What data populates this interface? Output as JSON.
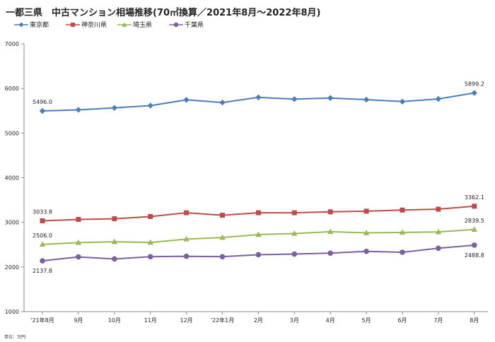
{
  "chart_data": {
    "type": "line",
    "title": "一都三県　中古マンション相場推移(70㎡換算／2021年8月～2022年8月)",
    "unit_note": "単位：万円",
    "categories": [
      "'21年8月",
      "9月",
      "10月",
      "11月",
      "12月",
      "'22年1月",
      "2月",
      "3月",
      "4月",
      "5月",
      "6月",
      "7月",
      "8月"
    ],
    "ylim": [
      1000,
      7000
    ],
    "yticks": [
      1000,
      2000,
      3000,
      4000,
      5000,
      6000,
      7000
    ],
    "grid": false,
    "legend_position": "top-left",
    "series": [
      {
        "name": "東京都",
        "color": "#4a7ebb",
        "marker": "diamond",
        "values": [
          5496.0,
          5520,
          5565,
          5615,
          5745,
          5685,
          5800,
          5760,
          5785,
          5750,
          5705,
          5765,
          5899.2
        ],
        "labels": [
          {
            "index": 0,
            "text": "5496.0",
            "pos": "above"
          },
          {
            "index": 12,
            "text": "5899.2",
            "pos": "above"
          }
        ]
      },
      {
        "name": "神奈川県",
        "color": "#be4b48",
        "marker": "square",
        "values": [
          3033.8,
          3065,
          3080,
          3130,
          3215,
          3160,
          3215,
          3215,
          3235,
          3250,
          3275,
          3295,
          3362.1
        ],
        "labels": [
          {
            "index": 0,
            "text": "3033.8",
            "pos": "above"
          },
          {
            "index": 12,
            "text": "3362.1",
            "pos": "above"
          }
        ]
      },
      {
        "name": "埼玉県",
        "color": "#98b954",
        "marker": "triangle",
        "values": [
          2506.0,
          2545,
          2565,
          2550,
          2625,
          2660,
          2725,
          2750,
          2790,
          2765,
          2775,
          2785,
          2839.5
        ],
        "labels": [
          {
            "index": 0,
            "text": "2506.0",
            "pos": "above"
          },
          {
            "index": 12,
            "text": "2839.5",
            "pos": "above"
          }
        ]
      },
      {
        "name": "千葉県",
        "color": "#7d5fa0",
        "marker": "circle",
        "values": [
          2137.8,
          2225,
          2180,
          2230,
          2240,
          2230,
          2275,
          2290,
          2310,
          2350,
          2330,
          2420,
          2488.8
        ],
        "labels": [
          {
            "index": 0,
            "text": "2137.8",
            "pos": "below"
          },
          {
            "index": 12,
            "text": "2488.8",
            "pos": "below"
          }
        ]
      }
    ]
  }
}
